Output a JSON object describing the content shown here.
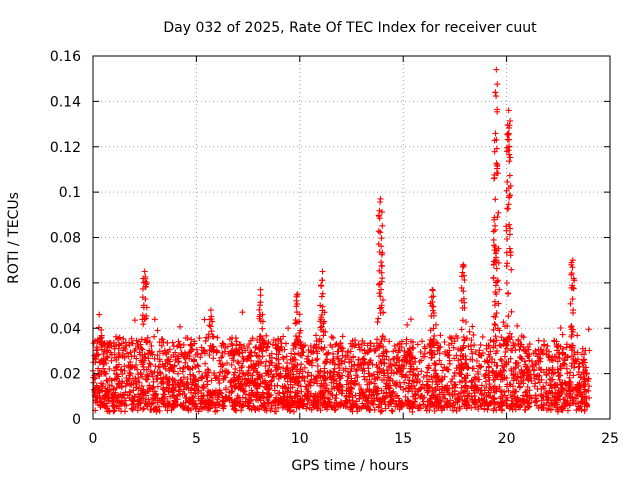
{
  "chart_data": {
    "type": "scatter",
    "title": "Day 032 of 2025, Rate Of TEC Index for receiver cuut",
    "xlabel": "GPS time / hours",
    "ylabel": "ROTI / TECUs",
    "xlim": [
      0,
      25
    ],
    "ylim": [
      0,
      0.16
    ],
    "xticks": [
      0,
      5,
      10,
      15,
      20,
      25
    ],
    "xtick_labels": [
      "0",
      "5",
      "10",
      "15",
      "20",
      "25"
    ],
    "yticks": [
      0,
      0.02,
      0.04,
      0.06,
      0.08,
      0.1,
      0.12,
      0.14,
      0.16
    ],
    "ytick_labels": [
      "0",
      "0.02",
      "0.04",
      "0.06",
      "0.08",
      "0.1",
      "0.12",
      "0.14",
      "0.16"
    ],
    "grid": true,
    "marker": "+",
    "color": "#ff0000",
    "series": [
      {
        "name": "ROTI",
        "x_range": [
          0,
          24
        ],
        "typical_band": [
          0.005,
          0.035
        ],
        "peaks": [
          {
            "x": 0.3,
            "y": 0.046
          },
          {
            "x": 2.5,
            "y": 0.065
          },
          {
            "x": 5.7,
            "y": 0.048
          },
          {
            "x": 8.1,
            "y": 0.057
          },
          {
            "x": 9.9,
            "y": 0.055
          },
          {
            "x": 11.1,
            "y": 0.065
          },
          {
            "x": 13.9,
            "y": 0.097
          },
          {
            "x": 16.4,
            "y": 0.057
          },
          {
            "x": 17.9,
            "y": 0.068
          },
          {
            "x": 19.5,
            "y": 0.154
          },
          {
            "x": 20.1,
            "y": 0.136
          },
          {
            "x": 23.2,
            "y": 0.07
          }
        ]
      }
    ]
  }
}
